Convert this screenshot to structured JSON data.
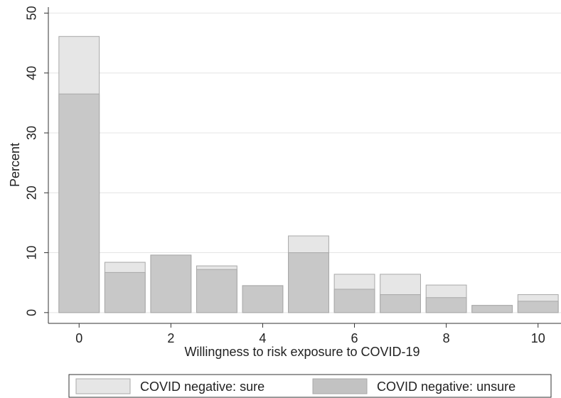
{
  "chart_data": {
    "type": "histogram",
    "x_label": "Willingness to risk exposure to COVID-19",
    "y_label": "Percent",
    "x": [
      0,
      1,
      2,
      3,
      4,
      5,
      6,
      7,
      8,
      9,
      10
    ],
    "series": [
      {
        "name": "COVID negative: sure",
        "color": "#e6e6e6",
        "values": [
          46.1,
          8.4,
          9.6,
          7.8,
          4.5,
          12.8,
          6.4,
          6.4,
          4.6,
          1.2,
          3.0
        ]
      },
      {
        "name": "COVID negative: unsure",
        "color": "#c2c2c2",
        "values": [
          36.5,
          6.7,
          9.6,
          7.2,
          4.5,
          10.0,
          3.9,
          3.0,
          2.5,
          1.2,
          1.9
        ]
      }
    ],
    "xlim": [
      -0.67,
      10.5
    ],
    "ylim": [
      -1.8,
      51
    ],
    "xticks": [
      0,
      2,
      4,
      6,
      8,
      10
    ],
    "yticks": [
      0,
      10,
      20,
      30,
      40,
      50
    ],
    "grid": true,
    "legend": "bottom"
  }
}
